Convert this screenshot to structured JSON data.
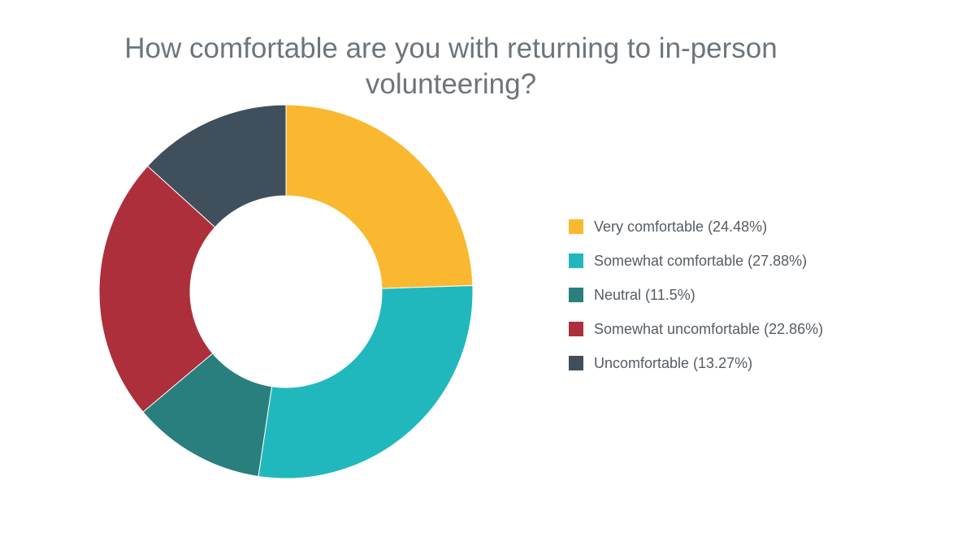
{
  "chart_data": {
    "type": "pie",
    "variant": "donut",
    "title": "How comfortable are you with returning to in-person volunteering?",
    "slices": [
      {
        "label": "Very comfortable (24.48%)",
        "value": 24.48,
        "color": "#f9b82f"
      },
      {
        "label": "Somewhat comfortable (27.88%)",
        "value": 27.88,
        "color": "#20b8bd"
      },
      {
        "label": "Neutral (11.5%)",
        "value": 11.5,
        "color": "#297f7d"
      },
      {
        "label": "Somewhat uncomfortable (22.86%)",
        "value": 22.86,
        "color": "#ad2f3b"
      },
      {
        "label": "Uncomfortable (13.27%)",
        "value": 13.27,
        "color": "#3f4f5b"
      }
    ],
    "legend_position": "right"
  }
}
